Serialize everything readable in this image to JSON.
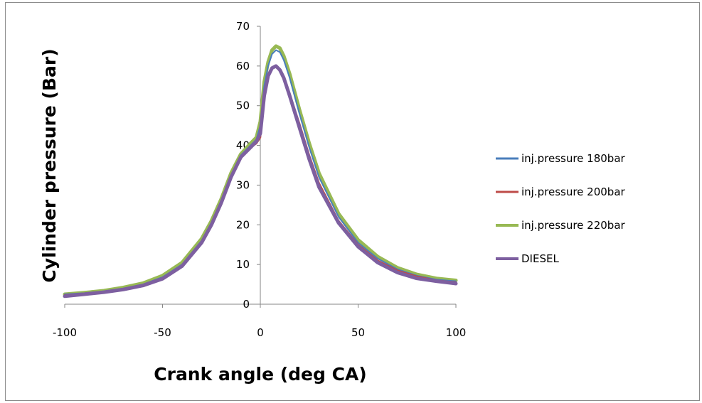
{
  "chart_data": {
    "type": "line",
    "title": "",
    "xlabel": "Crank angle (deg CA)",
    "ylabel": "Cylinder pressure (Bar)",
    "xlim": [
      -100,
      100
    ],
    "ylim": [
      0,
      70
    ],
    "xticks": [
      -100,
      -50,
      0,
      50,
      100
    ],
    "yticks": [
      0,
      10,
      20,
      30,
      40,
      50,
      60,
      70
    ],
    "legend_position": "right",
    "grid": false,
    "series": [
      {
        "name": "inj.pressure 180bar",
        "color": "#4a7ebb",
        "x": [
          -100,
          -90,
          -80,
          -70,
          -60,
          -50,
          -40,
          -30,
          -25,
          -20,
          -15,
          -10,
          -5,
          -2,
          0,
          2,
          4,
          6,
          8,
          10,
          12,
          15,
          20,
          25,
          30,
          40,
          50,
          60,
          70,
          80,
          90,
          100
        ],
        "y": [
          2.5,
          2.8,
          3.3,
          4.0,
          5.0,
          6.8,
          10.0,
          16.0,
          20.5,
          26.0,
          32.5,
          37.5,
          40.0,
          41.5,
          45.0,
          55.0,
          60.0,
          63.0,
          64.0,
          63.5,
          61.5,
          57.0,
          48.0,
          39.5,
          32.0,
          22.0,
          15.5,
          11.5,
          8.8,
          7.2,
          6.2,
          5.8
        ]
      },
      {
        "name": "inj.pressure 200bar",
        "color": "#be4b48",
        "x": [
          -100,
          -90,
          -80,
          -70,
          -60,
          -50,
          -40,
          -30,
          -25,
          -20,
          -15,
          -10,
          -5,
          -2,
          0,
          2,
          4,
          6,
          8,
          10,
          12,
          15,
          20,
          25,
          30,
          40,
          50,
          60,
          70,
          80,
          90,
          100
        ],
        "y": [
          2.3,
          2.7,
          3.2,
          3.9,
          4.9,
          6.6,
          9.8,
          15.8,
          20.2,
          25.8,
          32.0,
          37.0,
          39.5,
          40.5,
          42.0,
          52.0,
          57.5,
          59.3,
          59.8,
          59.0,
          57.0,
          53.0,
          45.5,
          37.5,
          30.5,
          21.0,
          15.0,
          11.0,
          8.5,
          7.0,
          6.0,
          5.5
        ]
      },
      {
        "name": "inj.pressure 220bar",
        "color": "#98b954",
        "x": [
          -100,
          -90,
          -80,
          -70,
          -60,
          -50,
          -40,
          -30,
          -25,
          -20,
          -15,
          -10,
          -5,
          -2,
          0,
          2,
          4,
          6,
          8,
          10,
          12,
          15,
          20,
          25,
          30,
          40,
          50,
          60,
          70,
          80,
          90,
          100
        ],
        "y": [
          2.5,
          2.9,
          3.4,
          4.2,
          5.3,
          7.2,
          10.5,
          16.5,
          21.0,
          26.5,
          33.0,
          37.8,
          40.5,
          42.0,
          46.0,
          56.0,
          61.0,
          64.0,
          65.0,
          64.5,
          62.5,
          58.0,
          49.0,
          40.5,
          33.0,
          22.8,
          16.2,
          12.0,
          9.2,
          7.5,
          6.5,
          6.0
        ]
      },
      {
        "name": "DIESEL",
        "color": "#7d5fa0",
        "x": [
          -100,
          -90,
          -80,
          -70,
          -60,
          -50,
          -40,
          -30,
          -25,
          -20,
          -15,
          -10,
          -5,
          -2,
          0,
          2,
          4,
          6,
          8,
          10,
          12,
          15,
          20,
          25,
          30,
          40,
          50,
          60,
          70,
          80,
          90,
          100
        ],
        "y": [
          2.0,
          2.5,
          3.0,
          3.7,
          4.7,
          6.4,
          9.6,
          15.5,
          20.0,
          25.5,
          32.0,
          37.0,
          39.5,
          41.0,
          43.0,
          52.5,
          57.5,
          59.5,
          60.0,
          59.0,
          57.0,
          52.5,
          44.5,
          36.5,
          29.5,
          20.5,
          14.5,
          10.5,
          8.0,
          6.5,
          5.8,
          5.2
        ]
      }
    ]
  }
}
